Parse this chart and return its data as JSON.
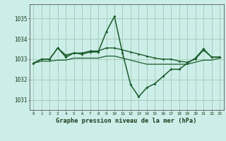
{
  "title": "Graphe pression niveau de la mer (hPa)",
  "background_color": "#cceee8",
  "grid_color": "#aaccbb",
  "line_color": "#1a5c2a",
  "xlim": [
    -0.5,
    23.5
  ],
  "ylim": [
    1030.5,
    1035.7
  ],
  "yticks": [
    1031,
    1032,
    1033,
    1034,
    1035
  ],
  "xticks": [
    0,
    1,
    2,
    3,
    4,
    5,
    6,
    7,
    8,
    9,
    10,
    11,
    12,
    13,
    14,
    15,
    16,
    17,
    18,
    19,
    20,
    21,
    22,
    23
  ],
  "series": [
    [
      1032.8,
      1033.0,
      1033.0,
      1033.55,
      1033.1,
      1033.3,
      1033.25,
      1033.35,
      1033.35,
      1034.35,
      1035.1,
      1033.3,
      1031.75,
      1031.15,
      1031.6,
      1031.8,
      1032.15,
      1032.5,
      1032.5,
      1032.8,
      1033.05,
      1033.5,
      1033.1,
      1033.1
    ],
    [
      1032.8,
      1033.0,
      1033.0,
      1033.55,
      1033.2,
      1033.3,
      1033.3,
      1033.4,
      1033.4,
      1033.55,
      1033.55,
      1033.45,
      1033.35,
      1033.25,
      1033.15,
      1033.05,
      1033.0,
      1033.0,
      1032.9,
      1032.85,
      1033.0,
      1033.45,
      1033.1,
      1033.1
    ],
    [
      1032.8,
      1032.9,
      1032.9,
      1032.95,
      1032.95,
      1033.05,
      1033.05,
      1033.05,
      1033.05,
      1033.15,
      1033.15,
      1033.05,
      1032.95,
      1032.85,
      1032.75,
      1032.75,
      1032.75,
      1032.75,
      1032.75,
      1032.75,
      1032.85,
      1032.95,
      1032.95,
      1033.05
    ]
  ]
}
